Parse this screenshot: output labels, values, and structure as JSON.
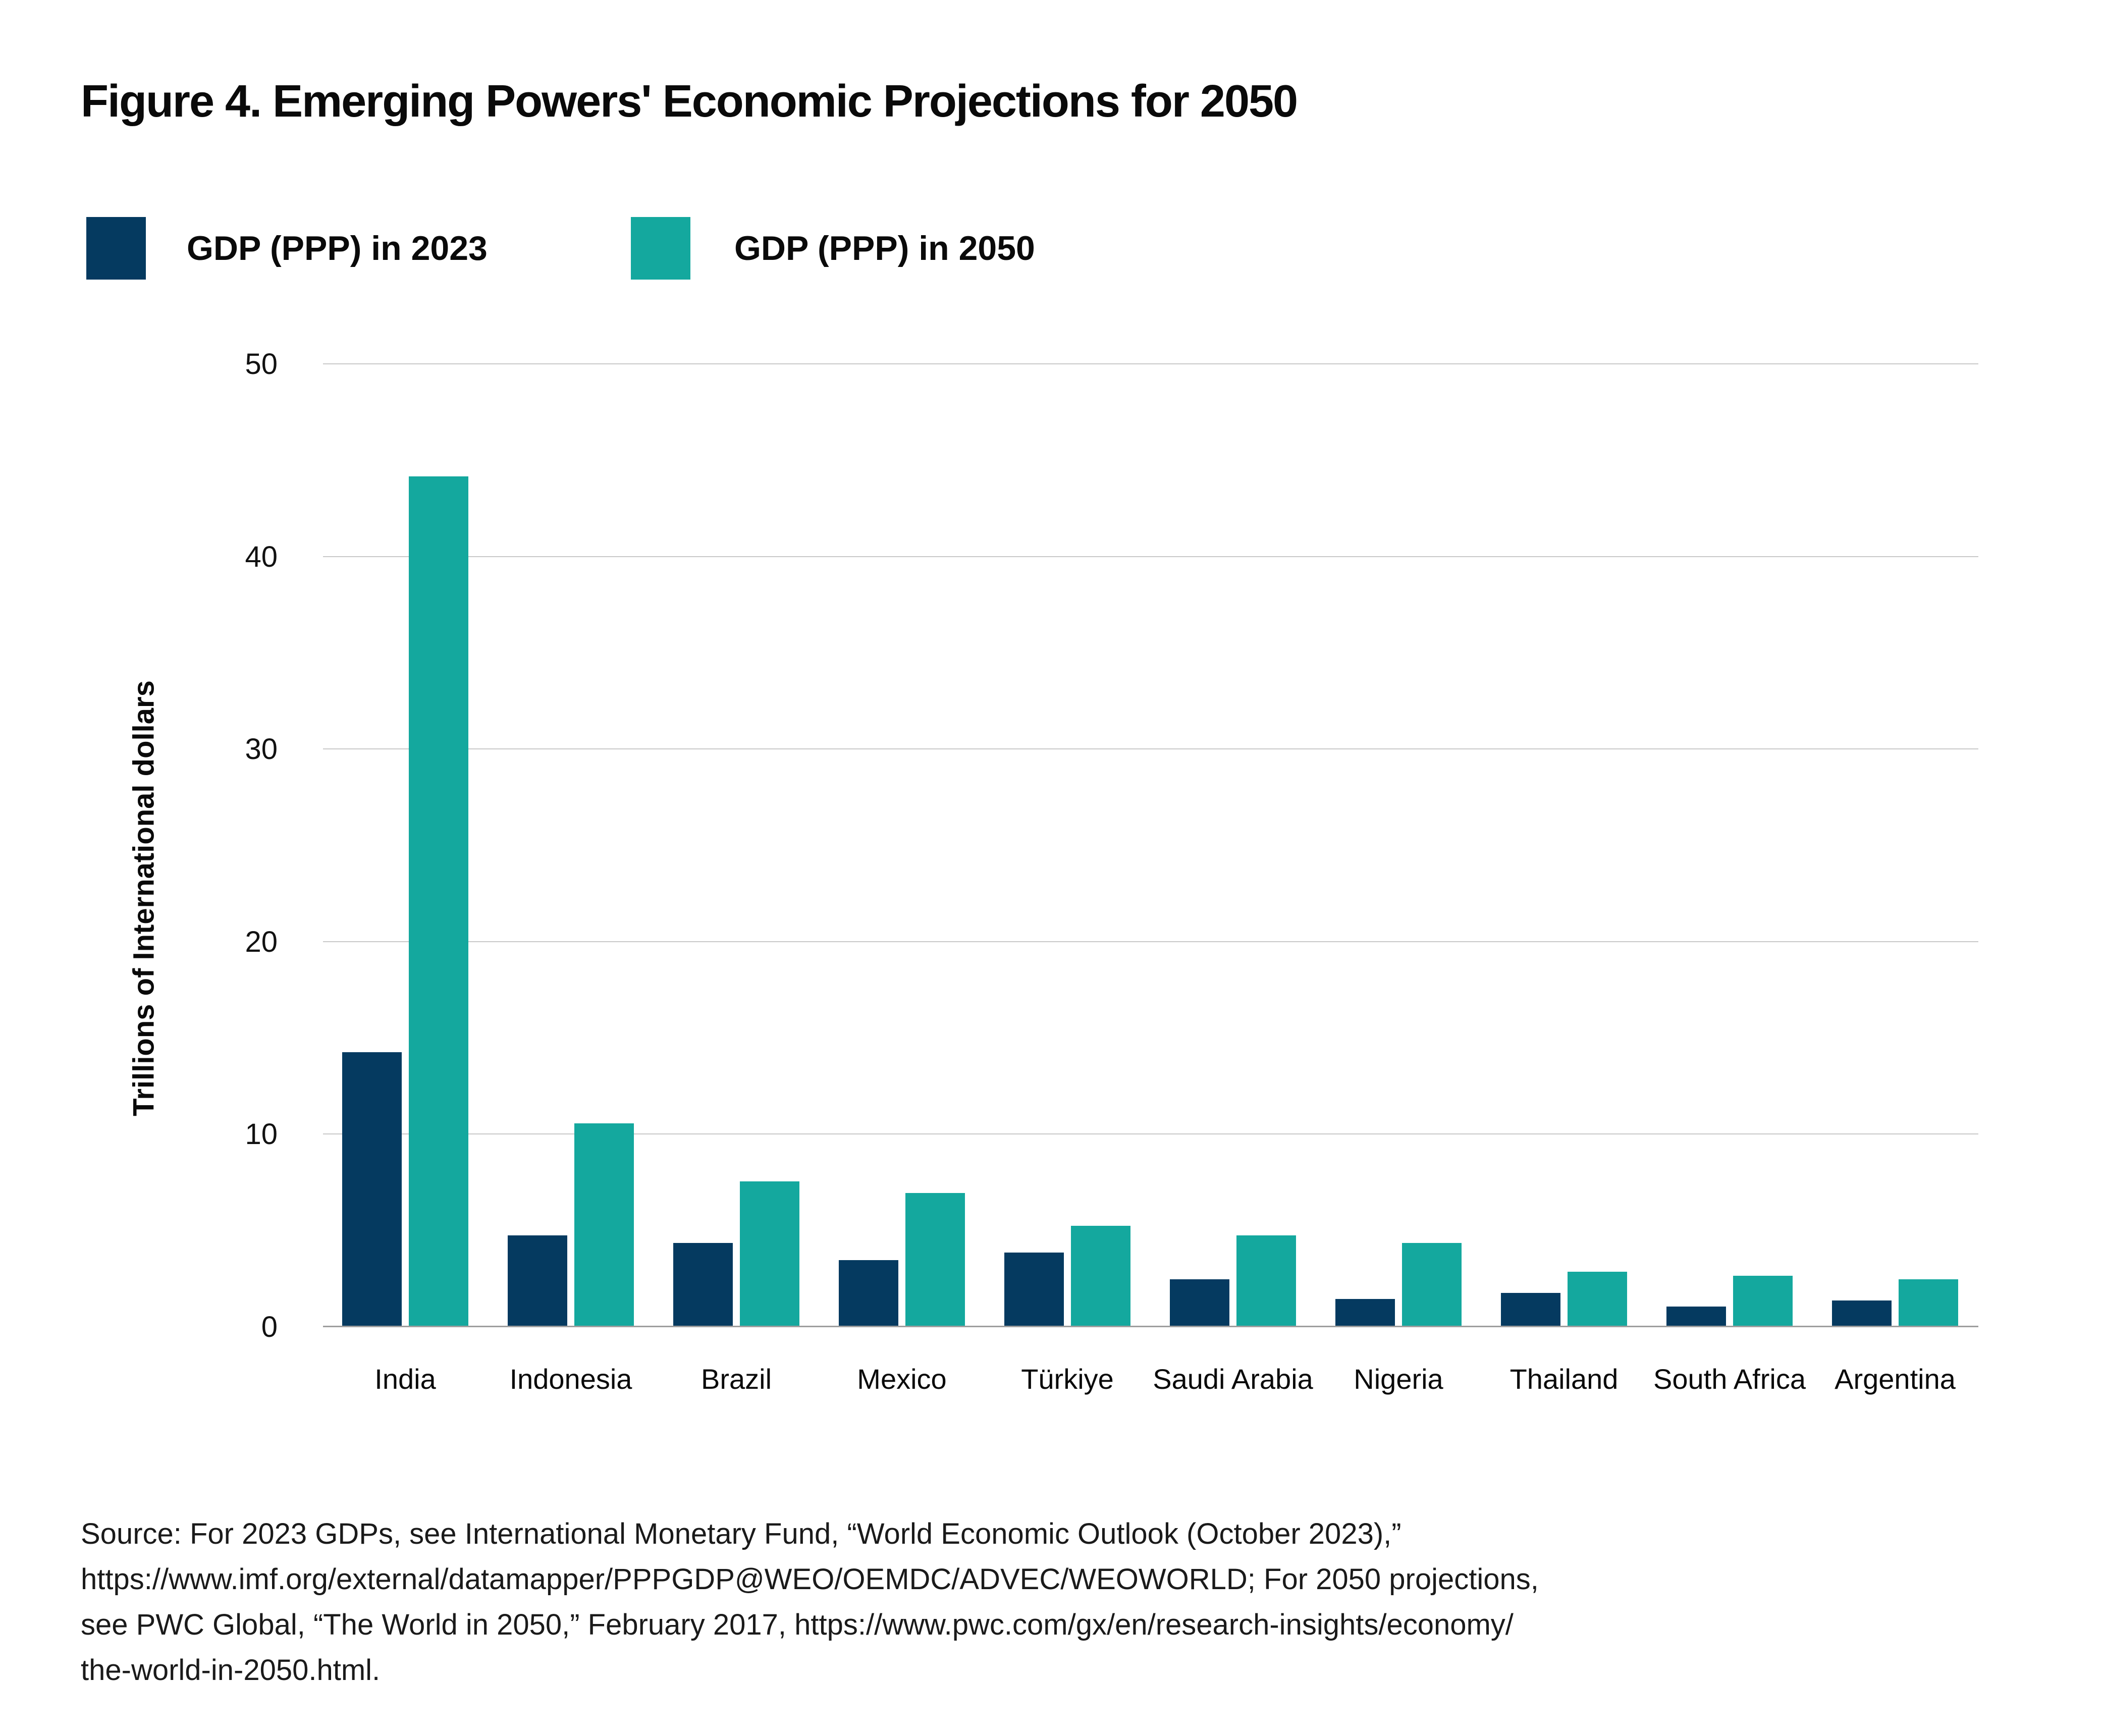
{
  "figure": {
    "title": "Figure 4. Emerging Powers' Economic Projections for 2050"
  },
  "legend": [
    {
      "label": "GDP (PPP) in 2023",
      "color": "#053a60"
    },
    {
      "label": "GDP (PPP) in 2050",
      "color": "#14a89e"
    }
  ],
  "chart_data": {
    "type": "bar",
    "categories": [
      "India",
      "Indonesia",
      "Brazil",
      "Mexico",
      "Türkiye",
      "Saudi Arabia",
      "Nigeria",
      "Thailand",
      "South Africa",
      "Argentina"
    ],
    "series": [
      {
        "name": "GDP (PPP) in 2023",
        "color": "#053a60",
        "values": [
          14.2,
          4.7,
          4.3,
          3.4,
          3.8,
          2.4,
          1.4,
          1.7,
          1.0,
          1.3
        ]
      },
      {
        "name": "GDP (PPP) in 2050",
        "color": "#14a89e",
        "values": [
          44.1,
          10.5,
          7.5,
          6.9,
          5.2,
          4.7,
          4.3,
          2.8,
          2.6,
          2.4
        ]
      }
    ],
    "title": "Figure 4. Emerging Powers' Economic Projections for 2050",
    "xlabel": "",
    "ylabel": "Trillions of International dollars",
    "ylim": [
      0,
      50
    ],
    "yticks": [
      0,
      10,
      20,
      30,
      40,
      50
    ],
    "grid": "horizontal",
    "legend_position": "top-left"
  },
  "source": {
    "lines": [
      "Source: For 2023 GDPs, see International Monetary Fund, “World Economic Outlook (October 2023),”",
      "https://www.imf.org/external/datamapper/PPPGDP@WEO/OEMDC/ADVEC/WEOWORLD; For 2050 projections,",
      "see PWC Global, “The World in 2050,” February 2017, https://www.pwc.com/gx/en/research-insights/economy/",
      "the-world-in-2050.html."
    ]
  }
}
